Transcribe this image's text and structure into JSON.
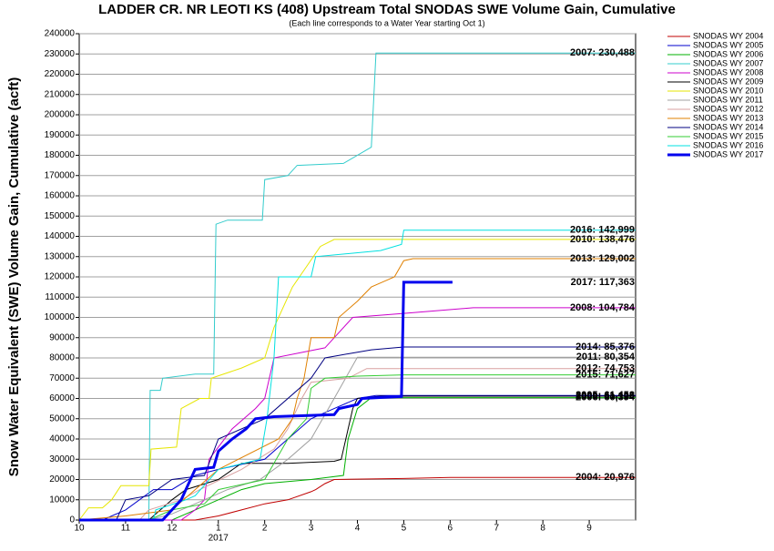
{
  "chart_data": {
    "type": "line",
    "title": "LADDER CR. NR LEOTI KS (408) Upstream Total SNODAS SWE Volume Gain, Cumulative",
    "subtitle": "(Each line corresponds to a Water Year starting Oct 1)",
    "y_label": "Snow Water Equivalent (SWE) Volume Gain, Cumulative (acft)",
    "x_annotation": "2017",
    "xlim": [
      0,
      12
    ],
    "xticks": [
      {
        "value": 0,
        "label": "10"
      },
      {
        "value": 1,
        "label": "11"
      },
      {
        "value": 2,
        "label": "12"
      },
      {
        "value": 3,
        "label": "1"
      },
      {
        "value": 4,
        "label": "2"
      },
      {
        "value": 5,
        "label": "3"
      },
      {
        "value": 6,
        "label": "4"
      },
      {
        "value": 7,
        "label": "5"
      },
      {
        "value": 8,
        "label": "6"
      },
      {
        "value": 9,
        "label": "7"
      },
      {
        "value": 10,
        "label": "8"
      },
      {
        "value": 11,
        "label": "9"
      }
    ],
    "ylim": [
      0,
      240000
    ],
    "yticks": [
      0,
      10000,
      20000,
      30000,
      40000,
      50000,
      60000,
      70000,
      80000,
      90000,
      100000,
      110000,
      120000,
      130000,
      140000,
      150000,
      160000,
      170000,
      180000,
      190000,
      200000,
      210000,
      220000,
      230000,
      240000
    ],
    "grid": true,
    "series": [
      {
        "name": "SNODAS WY 2004",
        "color": "#c00000",
        "end_label": "2004: 20,976",
        "x": [
          0,
          2.5,
          3,
          3.5,
          4,
          4.5,
          5,
          5.1,
          5.3,
          5.5,
          7,
          8,
          12
        ],
        "values": [
          0,
          0,
          2000,
          5000,
          8000,
          10000,
          14000,
          15000,
          18000,
          20000,
          20500,
          20976,
          20976
        ]
      },
      {
        "name": "SNODAS WY 2005",
        "color": "#0000cc",
        "end_label": "2005: 61,458",
        "x": [
          0,
          0.5,
          1,
          1.6,
          2,
          2.5,
          3,
          4,
          4.5,
          5,
          5.5,
          6,
          6.4,
          12
        ],
        "values": [
          0,
          0,
          5000,
          15000,
          15000,
          22000,
          25000,
          30000,
          40000,
          50000,
          55000,
          60000,
          61458,
          61458
        ]
      },
      {
        "name": "SNODAS WY 2006",
        "color": "#00b000",
        "end_label": "2006: 60,394",
        "x": [
          0,
          2,
          2.5,
          3,
          3.5,
          4,
          5,
          5.7,
          5.8,
          6,
          6.3,
          12
        ],
        "values": [
          0,
          0,
          5000,
          10000,
          15000,
          18000,
          20000,
          22000,
          40000,
          55000,
          60394,
          60394
        ]
      },
      {
        "name": "SNODAS WY 2007",
        "color": "#33cccc",
        "end_label": "2007: 230,488",
        "x": [
          0,
          1.5,
          1.53,
          1.75,
          1.8,
          2.5,
          2.9,
          2.95,
          3.2,
          3.95,
          4,
          4.5,
          4.7,
          5.7,
          6.3,
          6.4,
          12
        ],
        "values": [
          0,
          0,
          64000,
          64000,
          70000,
          72000,
          72000,
          146000,
          148000,
          148000,
          168000,
          170000,
          175000,
          176000,
          184000,
          230488,
          230488
        ]
      },
      {
        "name": "SNODAS WY 2008",
        "color": "#cc00cc",
        "end_label": "2008: 104,784",
        "x": [
          0,
          2.2,
          2.5,
          2.7,
          2.8,
          3.3,
          3.8,
          4,
          4.2,
          5.3,
          5.9,
          7,
          8.5,
          12
        ],
        "values": [
          0,
          0,
          5000,
          10000,
          30000,
          45000,
          55000,
          60000,
          80000,
          85000,
          100000,
          102000,
          104784,
          104784
        ]
      },
      {
        "name": "SNODAS WY 2009",
        "color": "#000000",
        "end_label": "2009: 61,120",
        "x": [
          0,
          1.5,
          2,
          2.3,
          3,
          3.5,
          4.5,
          5.5,
          5.65,
          5.9,
          6,
          6.5,
          12
        ],
        "values": [
          0,
          0,
          10000,
          15000,
          20000,
          28000,
          28000,
          29000,
          30000,
          55000,
          60000,
          61120,
          61120
        ]
      },
      {
        "name": "SNODAS WY 2010",
        "color": "#e6e600",
        "end_label": "2010: 138,476",
        "x": [
          0,
          0.2,
          0.5,
          0.7,
          0.9,
          1.5,
          1.55,
          2.1,
          2.2,
          2.6,
          2.8,
          2.85,
          3.5,
          4,
          4.2,
          4.6,
          4.9,
          5.2,
          5.5,
          12
        ],
        "values": [
          0,
          6000,
          6000,
          10000,
          17000,
          17000,
          35000,
          36000,
          55000,
          60000,
          60000,
          70000,
          75000,
          80000,
          95000,
          115000,
          125000,
          135000,
          138476,
          138476
        ]
      },
      {
        "name": "SNODAS WY 2011",
        "color": "#a0a0a0",
        "end_label": "2011: 80,354",
        "x": [
          0,
          1.5,
          2,
          2.5,
          3.2,
          3.9,
          4.5,
          5,
          5.5,
          6,
          12
        ],
        "values": [
          0,
          0,
          3000,
          8000,
          15000,
          20000,
          30000,
          40000,
          60000,
          80354,
          80354
        ]
      },
      {
        "name": "SNODAS WY 2012",
        "color": "#d9a0a0",
        "end_label": "2012: 74,753",
        "x": [
          0,
          1.3,
          1.5,
          2.2,
          2.6,
          3.5,
          4.2,
          4.5,
          4.8,
          5,
          5.8,
          6.2,
          12
        ],
        "values": [
          0,
          0,
          5000,
          10000,
          15000,
          25000,
          35000,
          45000,
          60000,
          68000,
          70000,
          74753,
          74753
        ]
      },
      {
        "name": "SNODAS WY 2013",
        "color": "#e08000",
        "end_label": "2013: 129,002",
        "x": [
          0,
          1,
          2,
          2.5,
          3,
          4.3,
          4.6,
          4.7,
          4.85,
          5,
          5.5,
          5.6,
          6,
          6.3,
          6.6,
          6.8,
          7,
          7.2,
          12
        ],
        "values": [
          0,
          2000,
          5000,
          15000,
          25000,
          40000,
          50000,
          60000,
          70000,
          90000,
          90000,
          100000,
          108000,
          115000,
          118000,
          120000,
          128000,
          129002,
          129002
        ]
      },
      {
        "name": "SNODAS WY 2014",
        "color": "#000080",
        "end_label": "2014: 85,376",
        "x": [
          0,
          0.8,
          1,
          1.5,
          2,
          2.7,
          3,
          4,
          5,
          5.3,
          5.8,
          6.3,
          7,
          12
        ],
        "values": [
          0,
          0,
          10000,
          12000,
          20000,
          22000,
          40000,
          50000,
          70000,
          80000,
          82000,
          84000,
          85376,
          85376
        ]
      },
      {
        "name": "SNODAS WY 2015",
        "color": "#33cc33",
        "end_label": "2015: 71,627",
        "x": [
          0,
          1.5,
          2,
          2.7,
          3,
          4,
          4.5,
          4.9,
          5,
          5.3,
          6,
          7,
          12
        ],
        "values": [
          0,
          0,
          5000,
          8000,
          15000,
          20000,
          40000,
          50000,
          65000,
          70000,
          71000,
          71627,
          71627
        ]
      },
      {
        "name": "SNODAS WY 2016",
        "color": "#00e0e0",
        "end_label": "2016: 142,999",
        "x": [
          0,
          1.6,
          1.65,
          2.3,
          2.5,
          3,
          3.9,
          4.05,
          4.2,
          4.25,
          4.3,
          5,
          5.1,
          6.5,
          6.95,
          7,
          12
        ],
        "values": [
          0,
          0,
          5000,
          10000,
          12000,
          25000,
          30000,
          50000,
          80000,
          100000,
          120000,
          120000,
          130000,
          133000,
          136000,
          142999,
          142999
        ]
      },
      {
        "name": "SNODAS WY 2017",
        "color": "#0000ee",
        "width": 3,
        "end_label": "2017: 117,363",
        "x": [
          0,
          1.8,
          2,
          2.2,
          2.4,
          2.5,
          2.9,
          3,
          3.3,
          3.6,
          3.8,
          4.2,
          5.5,
          5.6,
          6,
          6.1,
          6.95,
          7,
          8.05
        ],
        "values": [
          0,
          0,
          5000,
          10000,
          20000,
          25000,
          26000,
          34000,
          40000,
          45000,
          50000,
          51000,
          52000,
          55000,
          57000,
          60000,
          61000,
          117363,
          117363
        ]
      }
    ]
  }
}
